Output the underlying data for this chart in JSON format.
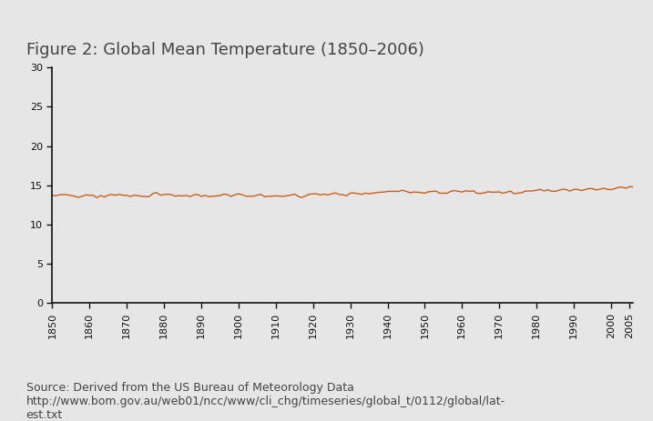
{
  "title": "Figure 2: Global Mean Temperature (1850–2006)",
  "source_text": "Source: Derived from the US Bureau of Meteorology Data\nhttp://www.bom.gov.au/web01/ncc/www/cli_chg/timeseries/global_t/0112/global/lat-\nest.txt",
  "line_color": "#C8601A",
  "background_color": "#E6E6E6",
  "plot_background": "#E6E6E6",
  "spine_color": "#111111",
  "tick_color": "#111111",
  "text_color": "#444444",
  "xlim": [
    1850,
    2006
  ],
  "ylim": [
    0,
    30
  ],
  "yticks": [
    0,
    5,
    10,
    15,
    20,
    25,
    30
  ],
  "xticks": [
    1850,
    1860,
    1870,
    1880,
    1890,
    1900,
    1910,
    1920,
    1930,
    1940,
    1950,
    1960,
    1970,
    1980,
    1990,
    2000,
    2005
  ],
  "title_fontsize": 13,
  "tick_fontsize": 8,
  "source_fontsize": 9,
  "years": [
    1850,
    1851,
    1852,
    1853,
    1854,
    1855,
    1856,
    1857,
    1858,
    1859,
    1860,
    1861,
    1862,
    1863,
    1864,
    1865,
    1866,
    1867,
    1868,
    1869,
    1870,
    1871,
    1872,
    1873,
    1874,
    1875,
    1876,
    1877,
    1878,
    1879,
    1880,
    1881,
    1882,
    1883,
    1884,
    1885,
    1886,
    1887,
    1888,
    1889,
    1890,
    1891,
    1892,
    1893,
    1894,
    1895,
    1896,
    1897,
    1898,
    1899,
    1900,
    1901,
    1902,
    1903,
    1904,
    1905,
    1906,
    1907,
    1908,
    1909,
    1910,
    1911,
    1912,
    1913,
    1914,
    1915,
    1916,
    1917,
    1918,
    1919,
    1920,
    1921,
    1922,
    1923,
    1924,
    1925,
    1926,
    1927,
    1928,
    1929,
    1930,
    1931,
    1932,
    1933,
    1934,
    1935,
    1936,
    1937,
    1938,
    1939,
    1940,
    1941,
    1942,
    1943,
    1944,
    1945,
    1946,
    1947,
    1948,
    1949,
    1950,
    1951,
    1952,
    1953,
    1954,
    1955,
    1956,
    1957,
    1958,
    1959,
    1960,
    1961,
    1962,
    1963,
    1964,
    1965,
    1966,
    1967,
    1968,
    1969,
    1970,
    1971,
    1972,
    1973,
    1974,
    1975,
    1976,
    1977,
    1978,
    1979,
    1980,
    1981,
    1982,
    1983,
    1984,
    1985,
    1986,
    1987,
    1988,
    1989,
    1990,
    1991,
    1992,
    1993,
    1994,
    1995,
    1996,
    1997,
    1998,
    1999,
    2000,
    2001,
    2002,
    2003,
    2004,
    2005,
    2006
  ],
  "temps": [
    13.72,
    13.66,
    13.79,
    13.82,
    13.79,
    13.69,
    13.6,
    13.46,
    13.58,
    13.77,
    13.72,
    13.73,
    13.41,
    13.69,
    13.5,
    13.74,
    13.82,
    13.72,
    13.85,
    13.72,
    13.72,
    13.57,
    13.73,
    13.67,
    13.6,
    13.55,
    13.55,
    13.95,
    14.07,
    13.73,
    13.82,
    13.86,
    13.79,
    13.62,
    13.67,
    13.64,
    13.69,
    13.56,
    13.77,
    13.84,
    13.57,
    13.72,
    13.55,
    13.59,
    13.62,
    13.68,
    13.87,
    13.82,
    13.57,
    13.79,
    13.9,
    13.79,
    13.61,
    13.6,
    13.6,
    13.74,
    13.84,
    13.53,
    13.6,
    13.6,
    13.66,
    13.63,
    13.59,
    13.65,
    13.74,
    13.87,
    13.59,
    13.43,
    13.64,
    13.86,
    13.9,
    13.9,
    13.76,
    13.86,
    13.76,
    13.91,
    14.02,
    13.84,
    13.79,
    13.65,
    14.0,
    14.02,
    13.93,
    13.84,
    14.0,
    13.93,
    13.98,
    14.07,
    14.11,
    14.13,
    14.22,
    14.22,
    14.21,
    14.22,
    14.37,
    14.22,
    14.05,
    14.13,
    14.11,
    14.06,
    13.99,
    14.17,
    14.22,
    14.24,
    13.99,
    13.99,
    13.99,
    14.24,
    14.32,
    14.23,
    14.14,
    14.3,
    14.21,
    14.3,
    13.97,
    13.96,
    14.03,
    14.17,
    14.12,
    14.12,
    14.14,
    13.99,
    14.12,
    14.25,
    13.92,
    14.0,
    14.04,
    14.26,
    14.27,
    14.28,
    14.37,
    14.48,
    14.27,
    14.43,
    14.24,
    14.24,
    14.35,
    14.5,
    14.43,
    14.26,
    14.47,
    14.47,
    14.32,
    14.45,
    14.57,
    14.57,
    14.4,
    14.5,
    14.62,
    14.48,
    14.44,
    14.57,
    14.73,
    14.75,
    14.62,
    14.82,
    14.79
  ]
}
